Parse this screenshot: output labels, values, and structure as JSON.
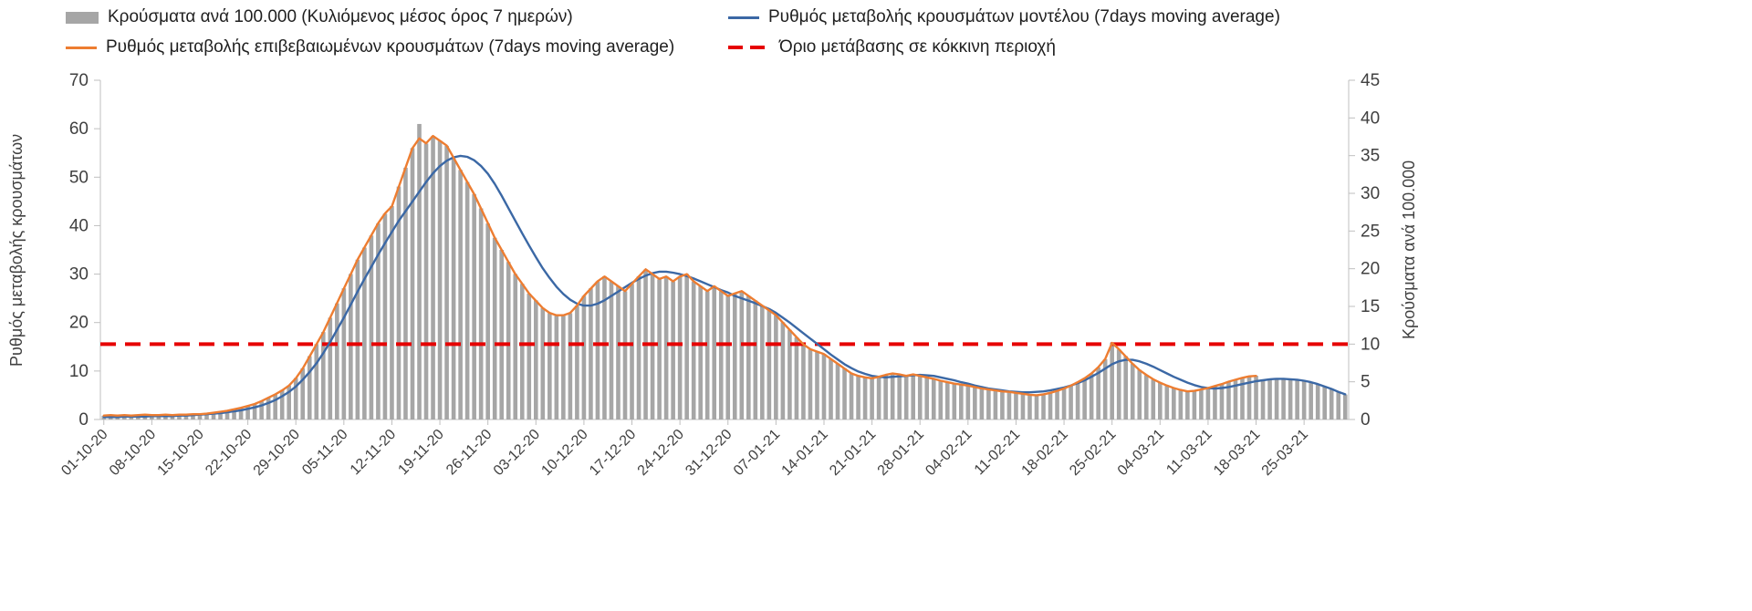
{
  "legend": {
    "items": [
      {
        "label": "Κρούσματα ανά 100.000 (Κυλιόμενος μέσος όρος 7 ημερών)",
        "type": "bar",
        "color": "#a6a6a6"
      },
      {
        "label": "Ρυθμός μεταβολής κρουσμάτων μοντέλου (7days moving average)",
        "type": "line",
        "color": "#3b68a5"
      },
      {
        "label": "Ρυθμός μεταβολής επιβεβαιωμένων κρουσμάτων (7days moving average)",
        "type": "line",
        "color": "#ed7d31"
      },
      {
        "label": "Όριο μετάβασης σε κόκκινη περιοχή",
        "type": "dashed-line",
        "color": "#e60000"
      }
    ]
  },
  "chart_data": {
    "type": "bar",
    "title": "",
    "left_axis": {
      "title": "Ρυθμός μεταβολής κρουσμάτων",
      "min": 0,
      "max": 70,
      "ticks": [
        0,
        10,
        20,
        30,
        40,
        50,
        60,
        70
      ]
    },
    "right_axis": {
      "title": "Κρούσματα ανά 100.000",
      "min": 0,
      "max": 45,
      "ticks": [
        0,
        5,
        10,
        15,
        20,
        25,
        30,
        35,
        40,
        45
      ]
    },
    "x_tick_interval_days": 7,
    "x_tick_labels": [
      "01-10-20",
      "08-10-20",
      "15-10-20",
      "22-10-20",
      "29-10-20",
      "05-11-20",
      "12-11-20",
      "19-11-20",
      "26-11-20",
      "03-12-20",
      "10-12-20",
      "17-12-20",
      "24-12-20",
      "31-12-20",
      "07-01-21",
      "14-01-21",
      "21-01-21",
      "28-01-21",
      "04-02-21",
      "11-02-21",
      "18-02-21",
      "25-02-21",
      "04-03-21",
      "11-03-21",
      "18-03-21",
      "25-03-21"
    ],
    "threshold": {
      "label": "Όριο μετάβασης σε κόκκινη περιοχή",
      "value_right_axis": 10,
      "color": "#e60000"
    },
    "grid": "off",
    "legend_position": "top",
    "series": [
      {
        "name": "Κρούσματα ανά 100.000 (Κυλιόμενος μέσος όρος 7 ημερών)",
        "type": "bar",
        "axis": "right",
        "color": "#a6a6a6",
        "values": [
          0.5,
          0.6,
          0.5,
          0.6,
          0.5,
          0.6,
          0.6,
          0.6,
          0.6,
          0.6,
          0.6,
          0.6,
          0.6,
          0.7,
          0.7,
          0.8,
          0.9,
          1.0,
          1.2,
          1.3,
          1.5,
          1.8,
          2.1,
          2.4,
          2.9,
          3.3,
          3.9,
          4.5,
          5.5,
          6.8,
          8.4,
          10.0,
          11.6,
          13.5,
          15.4,
          17.4,
          19.3,
          21.2,
          22.8,
          24.4,
          26.0,
          27.3,
          28.3,
          30.9,
          33.4,
          36.0,
          39.2,
          36.6,
          37.6,
          37.0,
          36.3,
          34.7,
          33.1,
          31.5,
          29.9,
          28.0,
          26.0,
          24.1,
          22.5,
          20.9,
          19.3,
          18.0,
          16.7,
          15.8,
          14.8,
          14.1,
          13.8,
          13.8,
          14.1,
          15.1,
          16.4,
          17.4,
          18.3,
          19.0,
          18.3,
          17.7,
          17.0,
          18.0,
          19.0,
          19.9,
          19.3,
          18.6,
          19.0,
          18.3,
          19.0,
          19.3,
          18.3,
          17.7,
          17.0,
          17.7,
          17.0,
          16.4,
          16.7,
          17.0,
          16.4,
          15.8,
          15.1,
          14.5,
          13.8,
          12.9,
          11.9,
          10.9,
          10.0,
          9.3,
          9.0,
          8.7,
          8.0,
          7.4,
          6.8,
          6.1,
          5.8,
          5.6,
          5.5,
          5.7,
          5.9,
          6.1,
          6.0,
          5.8,
          6.0,
          5.8,
          5.6,
          5.4,
          5.1,
          5.0,
          4.8,
          4.6,
          4.5,
          4.3,
          4.1,
          4.0,
          3.9,
          3.7,
          3.7,
          3.5,
          3.4,
          3.3,
          3.2,
          3.3,
          3.5,
          3.8,
          4.1,
          4.5,
          5.0,
          5.5,
          6.1,
          6.9,
          8.0,
          10.2,
          9.3,
          8.4,
          7.4,
          6.6,
          5.9,
          5.3,
          4.9,
          4.5,
          4.2,
          3.9,
          3.7,
          3.8,
          4.0,
          4.2,
          4.4,
          4.7,
          5.0,
          5.3,
          5.5,
          5.7,
          5.8,
          5.2,
          5.3,
          5.4,
          5.4,
          5.3,
          5.3,
          5.1,
          4.9,
          4.7,
          4.4,
          4.1,
          3.7,
          3.3
        ]
      },
      {
        "name": "Ρυθμός μεταβολής κρουσμάτων μοντέλου (7days moving average)",
        "type": "line",
        "axis": "left",
        "color": "#3b68a5",
        "values": [
          0.5,
          0.5,
          0.5,
          0.6,
          0.6,
          0.6,
          0.6,
          0.7,
          0.7,
          0.7,
          0.7,
          0.8,
          0.8,
          0.9,
          1.0,
          1.1,
          1.2,
          1.3,
          1.5,
          1.7,
          1.9,
          2.2,
          2.5,
          2.9,
          3.4,
          4.0,
          4.8,
          5.7,
          6.8,
          8.2,
          9.8,
          11.6,
          13.7,
          16.0,
          18.5,
          21.0,
          23.7,
          26.4,
          29.0,
          31.5,
          34.0,
          36.4,
          38.7,
          41.0,
          43.0,
          45.0,
          47.0,
          49.0,
          50.8,
          52.3,
          53.4,
          54.1,
          54.4,
          54.2,
          53.5,
          52.3,
          50.7,
          48.6,
          46.2,
          43.6,
          41.0,
          38.4,
          35.9,
          33.5,
          31.2,
          29.2,
          27.4,
          25.9,
          24.7,
          23.9,
          23.5,
          23.5,
          23.9,
          24.6,
          25.5,
          26.4,
          27.3,
          28.2,
          29.0,
          29.7,
          30.2,
          30.5,
          30.5,
          30.3,
          30.0,
          29.6,
          29.1,
          28.5,
          27.9,
          27.3,
          26.7,
          26.2,
          25.5,
          25.0,
          24.5,
          24.0,
          23.4,
          22.8,
          22.0,
          21.0,
          20.0,
          18.9,
          17.8,
          16.7,
          15.6,
          14.5,
          13.4,
          12.4,
          11.4,
          10.6,
          9.9,
          9.4,
          9.0,
          8.8,
          8.7,
          8.8,
          8.9,
          9.0,
          9.1,
          9.2,
          9.1,
          9.0,
          8.7,
          8.4,
          8.1,
          7.7,
          7.4,
          7.0,
          6.7,
          6.4,
          6.2,
          6.0,
          5.8,
          5.7,
          5.6,
          5.6,
          5.7,
          5.8,
          6.0,
          6.3,
          6.6,
          7.0,
          7.5,
          8.1,
          8.8,
          9.6,
          10.5,
          11.4,
          12.0,
          12.3,
          12.3,
          12.0,
          11.5,
          10.9,
          10.2,
          9.5,
          8.8,
          8.2,
          7.6,
          7.1,
          6.7,
          6.5,
          6.4,
          6.5,
          6.7,
          7.0,
          7.3,
          7.6,
          7.9,
          8.1,
          8.3,
          8.4,
          8.4,
          8.3,
          8.2,
          8.0,
          7.7,
          7.3,
          6.8,
          6.3,
          5.7,
          5.2
        ]
      },
      {
        "name": "Ρυθμός μεταβολής επιβεβαιωμένων κρουσμάτων (7days moving average)",
        "type": "line",
        "axis": "left",
        "color": "#ed7d31",
        "values": [
          0.8,
          0.9,
          0.8,
          0.9,
          0.8,
          0.9,
          1.0,
          0.9,
          0.9,
          1.0,
          0.9,
          1.0,
          1.0,
          1.1,
          1.1,
          1.2,
          1.4,
          1.6,
          1.8,
          2.1,
          2.4,
          2.8,
          3.2,
          3.8,
          4.5,
          5.2,
          6.0,
          7.0,
          8.5,
          10.5,
          13.0,
          15.5,
          18.0,
          21.0,
          24.0,
          27.0,
          30.0,
          33.0,
          35.5,
          38.0,
          40.5,
          42.5,
          44.0,
          48.0,
          52.0,
          56.0,
          58.0,
          57.0,
          58.5,
          57.5,
          56.5,
          54.0,
          51.5,
          49.0,
          46.5,
          43.5,
          40.5,
          37.5,
          35.0,
          32.5,
          30.0,
          28.0,
          26.0,
          24.5,
          23.0,
          22.0,
          21.5,
          21.5,
          22.0,
          23.5,
          25.5,
          27.0,
          28.5,
          29.5,
          28.5,
          27.5,
          26.5,
          28.0,
          29.5,
          31.0,
          30.0,
          29.0,
          29.5,
          28.5,
          29.5,
          30.0,
          28.5,
          27.5,
          26.5,
          27.5,
          26.5,
          25.5,
          26.0,
          26.5,
          25.5,
          24.5,
          23.5,
          22.5,
          21.5,
          20.0,
          18.5,
          17.0,
          15.5,
          14.5,
          14.0,
          13.5,
          12.5,
          11.5,
          10.5,
          9.5,
          9.0,
          8.7,
          8.5,
          8.8,
          9.2,
          9.5,
          9.3,
          9.0,
          9.3,
          9.0,
          8.7,
          8.4,
          8.0,
          7.7,
          7.4,
          7.2,
          7.0,
          6.7,
          6.4,
          6.2,
          6.0,
          5.8,
          5.7,
          5.5,
          5.3,
          5.1,
          5.0,
          5.2,
          5.5,
          5.9,
          6.4,
          7.0,
          7.7,
          8.5,
          9.5,
          10.8,
          12.5,
          15.8,
          14.5,
          13.0,
          11.5,
          10.2,
          9.2,
          8.3,
          7.6,
          7.0,
          6.5,
          6.1,
          5.8,
          5.9,
          6.2,
          6.5,
          6.9,
          7.3,
          7.8,
          8.2,
          8.6,
          8.9,
          9.0,
          null,
          null,
          null,
          null,
          null,
          null,
          null,
          null,
          null,
          null,
          null,
          null,
          null
        ]
      }
    ]
  }
}
